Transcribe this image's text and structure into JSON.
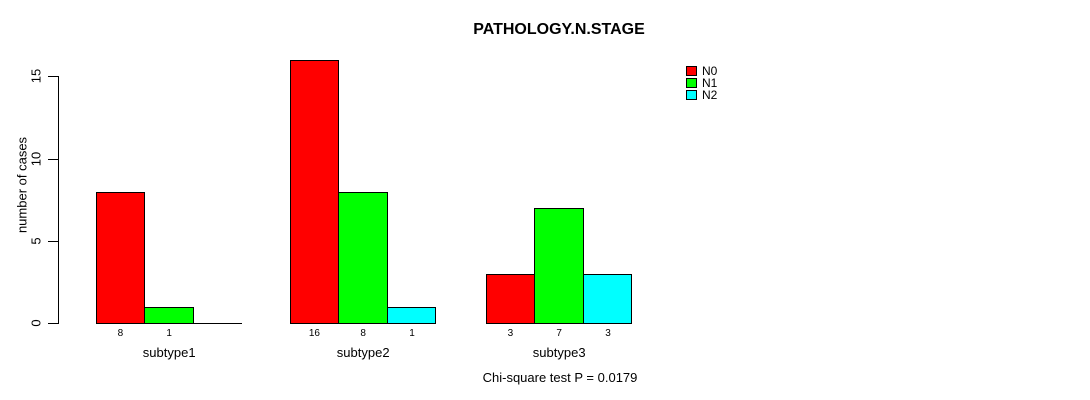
{
  "title": "PATHOLOGY.N.STAGE",
  "caption": "Chi-square test P = 0.0179",
  "y_axis": {
    "label": "number of cases",
    "ticks": [
      0,
      5,
      10,
      15
    ]
  },
  "legend": {
    "entries": [
      {
        "label": "N0",
        "color": "#ff0000"
      },
      {
        "label": "N1",
        "color": "#00ff00"
      },
      {
        "label": "N2",
        "color": "#00ffff"
      }
    ]
  },
  "colors": {
    "background": "#ffffff",
    "axis": "#000000",
    "text": "#000000"
  },
  "chart_data": {
    "type": "bar",
    "grouped": true,
    "categories": [
      "subtype1",
      "subtype2",
      "subtype3"
    ],
    "series": [
      {
        "name": "N0",
        "color": "#ff0000",
        "values": [
          8,
          16,
          3
        ]
      },
      {
        "name": "N1",
        "color": "#00ff00",
        "values": [
          1,
          8,
          7
        ]
      },
      {
        "name": "N2",
        "color": "#00ffff",
        "values": [
          0,
          1,
          3
        ]
      }
    ],
    "title": "PATHOLOGY.N.STAGE",
    "xlabel": "",
    "ylabel": "number of cases",
    "ylim": [
      0,
      16
    ],
    "yticks": [
      0,
      5,
      10,
      15
    ],
    "grid": false,
    "legend_position": "top-right",
    "bar_value_labels": true,
    "hide_zero_value_labels": true,
    "annotation": "Chi-square test P = 0.0179"
  }
}
